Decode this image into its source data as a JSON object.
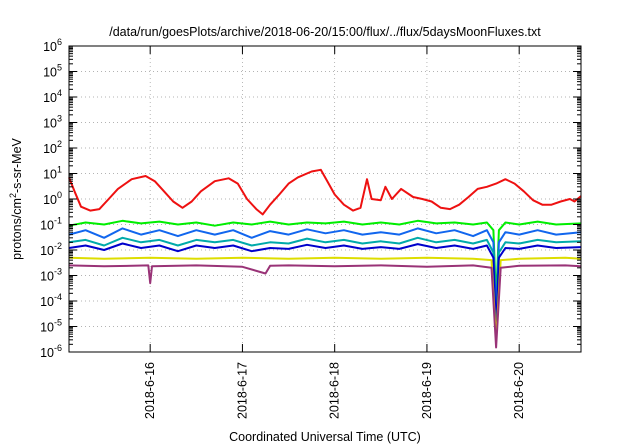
{
  "chart_data": {
    "type": "line",
    "title": "/data/run/goesPlots/archive/2018-06-20/15:00/flux/../flux/5daysMoonFluxes.txt",
    "xlabel": "Coordinated Universal Time (UTC)",
    "ylabel": "protons/cm²-s-sr-MeV",
    "y_scale": "log",
    "ylim_exp": [
      -6,
      6
    ],
    "xlim_days": [
      15.12,
      20.67
    ],
    "x_ticks": [
      {
        "day": 16,
        "label": "2018-6-16"
      },
      {
        "day": 17,
        "label": "2018-6-17"
      },
      {
        "day": 18,
        "label": "2018-6-18"
      },
      {
        "day": 19,
        "label": "2018-6-19"
      },
      {
        "day": 20,
        "label": "2018-6-20"
      }
    ],
    "grid": true,
    "legend": "none",
    "series": [
      {
        "color": "#ee1111",
        "points": [
          [
            15.12,
            7
          ],
          [
            15.18,
            2
          ],
          [
            15.25,
            0.5
          ],
          [
            15.35,
            0.35
          ],
          [
            15.45,
            0.4
          ],
          [
            15.55,
            1
          ],
          [
            15.65,
            2.5
          ],
          [
            15.8,
            6
          ],
          [
            15.95,
            8
          ],
          [
            16.05,
            5
          ],
          [
            16.15,
            2
          ],
          [
            16.25,
            0.8
          ],
          [
            16.35,
            0.45
          ],
          [
            16.45,
            0.8
          ],
          [
            16.55,
            2
          ],
          [
            16.7,
            5
          ],
          [
            16.85,
            6.5
          ],
          [
            16.95,
            4
          ],
          [
            17.05,
            1
          ],
          [
            17.15,
            0.4
          ],
          [
            17.22,
            0.25
          ],
          [
            17.3,
            0.6
          ],
          [
            17.4,
            1.5
          ],
          [
            17.5,
            4
          ],
          [
            17.6,
            7
          ],
          [
            17.75,
            12
          ],
          [
            17.85,
            14
          ],
          [
            17.92,
            5
          ],
          [
            18.0,
            1.5
          ],
          [
            18.1,
            0.6
          ],
          [
            18.2,
            0.35
          ],
          [
            18.28,
            0.45
          ],
          [
            18.35,
            6
          ],
          [
            18.4,
            1
          ],
          [
            18.5,
            0.9
          ],
          [
            18.55,
            3
          ],
          [
            18.62,
            1
          ],
          [
            18.72,
            2.5
          ],
          [
            18.85,
            1.2
          ],
          [
            18.95,
            1
          ],
          [
            19.05,
            0.8
          ],
          [
            19.15,
            0.45
          ],
          [
            19.25,
            0.4
          ],
          [
            19.35,
            0.6
          ],
          [
            19.45,
            1.2
          ],
          [
            19.55,
            2.5
          ],
          [
            19.65,
            3
          ],
          [
            19.75,
            4
          ],
          [
            19.85,
            6
          ],
          [
            19.95,
            4
          ],
          [
            20.05,
            2
          ],
          [
            20.15,
            0.9
          ],
          [
            20.25,
            0.6
          ],
          [
            20.35,
            0.6
          ],
          [
            20.45,
            0.8
          ],
          [
            20.55,
            1
          ],
          [
            20.6,
            0.8
          ],
          [
            20.67,
            1.3
          ]
        ]
      },
      {
        "color": "#00ee00",
        "points": [
          [
            15.12,
            0.09
          ],
          [
            15.3,
            0.12
          ],
          [
            15.5,
            0.1
          ],
          [
            15.7,
            0.14
          ],
          [
            15.9,
            0.11
          ],
          [
            16.1,
            0.13
          ],
          [
            16.3,
            0.1
          ],
          [
            16.5,
            0.12
          ],
          [
            16.7,
            0.09
          ],
          [
            16.9,
            0.12
          ],
          [
            17.1,
            0.1
          ],
          [
            17.3,
            0.13
          ],
          [
            17.5,
            0.1
          ],
          [
            17.7,
            0.12
          ],
          [
            17.9,
            0.11
          ],
          [
            18.1,
            0.13
          ],
          [
            18.3,
            0.1
          ],
          [
            18.5,
            0.12
          ],
          [
            18.7,
            0.1
          ],
          [
            18.9,
            0.14
          ],
          [
            19.1,
            0.11
          ],
          [
            19.3,
            0.12
          ],
          [
            19.5,
            0.1
          ],
          [
            19.65,
            0.12
          ],
          [
            19.72,
            0.06
          ],
          [
            19.75,
            0.0001
          ],
          [
            19.78,
            0.06
          ],
          [
            19.85,
            0.12
          ],
          [
            20.0,
            0.1
          ],
          [
            20.2,
            0.13
          ],
          [
            20.4,
            0.1
          ],
          [
            20.67,
            0.11
          ]
        ]
      },
      {
        "color": "#1166ee",
        "points": [
          [
            15.12,
            0.04
          ],
          [
            15.3,
            0.06
          ],
          [
            15.5,
            0.03
          ],
          [
            15.7,
            0.07
          ],
          [
            15.9,
            0.04
          ],
          [
            16.1,
            0.06
          ],
          [
            16.3,
            0.035
          ],
          [
            16.5,
            0.06
          ],
          [
            16.7,
            0.04
          ],
          [
            16.9,
            0.06
          ],
          [
            17.1,
            0.03
          ],
          [
            17.3,
            0.055
          ],
          [
            17.5,
            0.04
          ],
          [
            17.7,
            0.065
          ],
          [
            17.9,
            0.045
          ],
          [
            18.1,
            0.06
          ],
          [
            18.3,
            0.04
          ],
          [
            18.5,
            0.05
          ],
          [
            18.7,
            0.04
          ],
          [
            18.9,
            0.07
          ],
          [
            19.1,
            0.045
          ],
          [
            19.3,
            0.06
          ],
          [
            19.5,
            0.035
          ],
          [
            19.65,
            0.06
          ],
          [
            19.72,
            0.02
          ],
          [
            19.75,
            3e-05
          ],
          [
            19.78,
            0.02
          ],
          [
            19.85,
            0.05
          ],
          [
            20.0,
            0.04
          ],
          [
            20.2,
            0.06
          ],
          [
            20.4,
            0.04
          ],
          [
            20.67,
            0.05
          ]
        ]
      },
      {
        "color": "#00aaaa",
        "points": [
          [
            15.12,
            0.02
          ],
          [
            15.3,
            0.025
          ],
          [
            15.5,
            0.015
          ],
          [
            15.7,
            0.03
          ],
          [
            15.9,
            0.02
          ],
          [
            16.1,
            0.025
          ],
          [
            16.3,
            0.015
          ],
          [
            16.5,
            0.025
          ],
          [
            16.7,
            0.02
          ],
          [
            16.9,
            0.025
          ],
          [
            17.1,
            0.015
          ],
          [
            17.3,
            0.02
          ],
          [
            17.5,
            0.018
          ],
          [
            17.7,
            0.028
          ],
          [
            17.9,
            0.02
          ],
          [
            18.1,
            0.025
          ],
          [
            18.3,
            0.018
          ],
          [
            18.5,
            0.022
          ],
          [
            18.7,
            0.018
          ],
          [
            18.9,
            0.03
          ],
          [
            19.1,
            0.02
          ],
          [
            19.3,
            0.025
          ],
          [
            19.5,
            0.018
          ],
          [
            19.65,
            0.025
          ],
          [
            19.72,
            0.008
          ],
          [
            19.75,
            1e-05
          ],
          [
            19.78,
            0.008
          ],
          [
            19.85,
            0.02
          ],
          [
            20.0,
            0.018
          ],
          [
            20.2,
            0.025
          ],
          [
            20.4,
            0.02
          ],
          [
            20.67,
            0.022
          ]
        ]
      },
      {
        "color": "#0000cc",
        "points": [
          [
            15.12,
            0.012
          ],
          [
            15.3,
            0.015
          ],
          [
            15.5,
            0.01
          ],
          [
            15.7,
            0.018
          ],
          [
            15.9,
            0.012
          ],
          [
            16.1,
            0.015
          ],
          [
            16.3,
            0.009
          ],
          [
            16.5,
            0.015
          ],
          [
            16.7,
            0.012
          ],
          [
            16.9,
            0.015
          ],
          [
            17.1,
            0.009
          ],
          [
            17.3,
            0.012
          ],
          [
            17.5,
            0.011
          ],
          [
            17.7,
            0.016
          ],
          [
            17.9,
            0.012
          ],
          [
            18.1,
            0.015
          ],
          [
            18.3,
            0.011
          ],
          [
            18.5,
            0.013
          ],
          [
            18.7,
            0.011
          ],
          [
            18.9,
            0.017
          ],
          [
            19.1,
            0.012
          ],
          [
            19.3,
            0.015
          ],
          [
            19.5,
            0.011
          ],
          [
            19.65,
            0.015
          ],
          [
            19.72,
            0.005
          ],
          [
            19.75,
            6e-06
          ],
          [
            19.78,
            0.005
          ],
          [
            19.85,
            0.012
          ],
          [
            20.0,
            0.011
          ],
          [
            20.2,
            0.015
          ],
          [
            20.4,
            0.012
          ],
          [
            20.67,
            0.013
          ]
        ]
      },
      {
        "color": "#dddd00",
        "points": [
          [
            15.12,
            0.005
          ],
          [
            15.5,
            0.0045
          ],
          [
            16.0,
            0.005
          ],
          [
            16.5,
            0.0045
          ],
          [
            17.0,
            0.005
          ],
          [
            17.5,
            0.0045
          ],
          [
            18.0,
            0.005
          ],
          [
            18.5,
            0.0045
          ],
          [
            19.0,
            0.005
          ],
          [
            19.5,
            0.0045
          ],
          [
            19.7,
            0.004
          ],
          [
            19.75,
            3e-06
          ],
          [
            19.8,
            0.004
          ],
          [
            20.0,
            0.0045
          ],
          [
            20.5,
            0.005
          ],
          [
            20.67,
            0.0045
          ]
        ]
      },
      {
        "color": "#993377",
        "points": [
          [
            15.12,
            0.0025
          ],
          [
            15.5,
            0.0023
          ],
          [
            15.98,
            0.0025
          ],
          [
            16.0,
            0.0005
          ],
          [
            16.02,
            0.0023
          ],
          [
            16.5,
            0.0025
          ],
          [
            17.0,
            0.0022
          ],
          [
            17.25,
            0.0012
          ],
          [
            17.3,
            0.0024
          ],
          [
            17.5,
            0.0025
          ],
          [
            18.0,
            0.0023
          ],
          [
            18.5,
            0.0025
          ],
          [
            19.0,
            0.0022
          ],
          [
            19.5,
            0.0025
          ],
          [
            19.7,
            0.002
          ],
          [
            19.75,
            1.5e-06
          ],
          [
            19.8,
            0.002
          ],
          [
            20.0,
            0.0024
          ],
          [
            20.5,
            0.0025
          ],
          [
            20.67,
            0.0023
          ]
        ]
      }
    ]
  }
}
